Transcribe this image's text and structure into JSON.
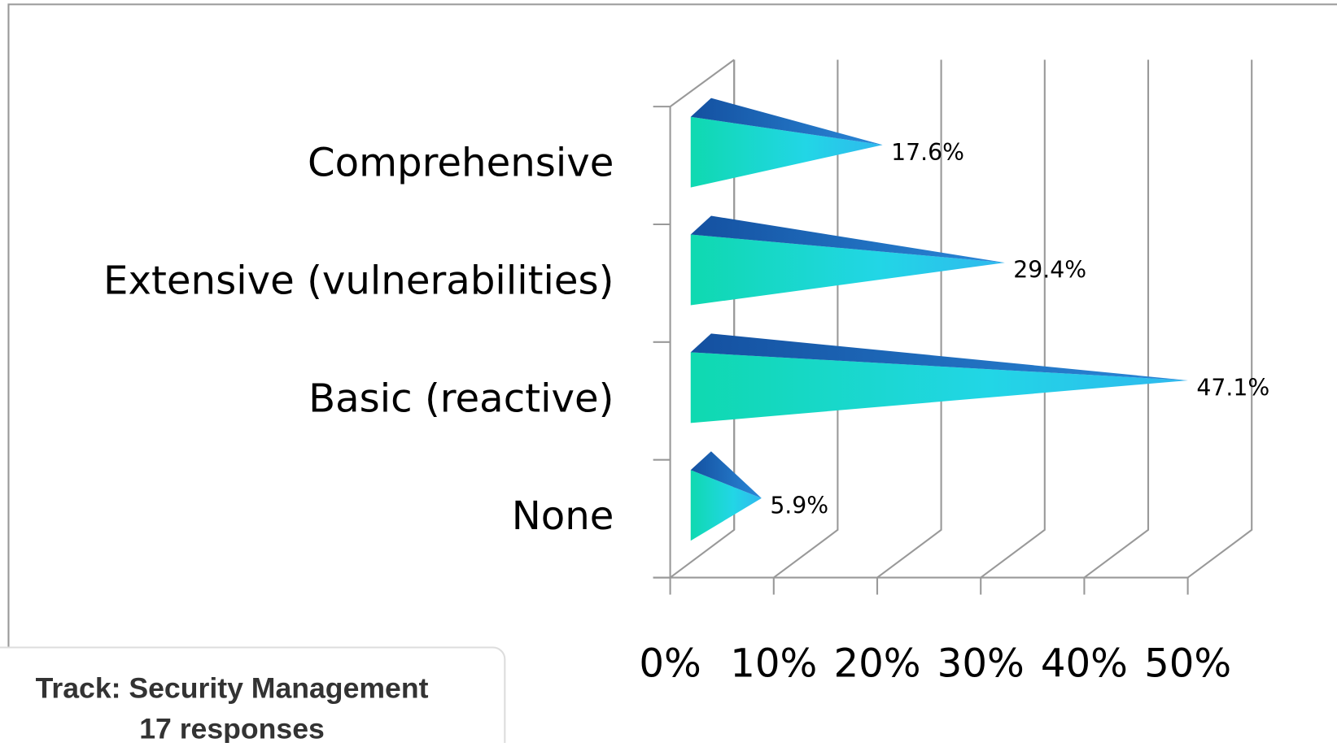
{
  "chart_data": {
    "type": "bar",
    "categories": [
      "Comprehensive",
      "Extensive (vulnerabilities)",
      "Basic (reactive)",
      "None"
    ],
    "values": [
      17.6,
      29.4,
      47.1,
      5.9
    ],
    "value_labels": [
      "17.6%",
      "29.4%",
      "47.1%",
      "5.9%"
    ],
    "xlim": [
      0,
      50
    ],
    "xticks": [
      {
        "value": 0,
        "label": "0%"
      },
      {
        "value": 10,
        "label": "10%"
      },
      {
        "value": 20,
        "label": "20%"
      },
      {
        "value": 30,
        "label": "30%"
      },
      {
        "value": 40,
        "label": "40%"
      },
      {
        "value": 50,
        "label": "50%"
      }
    ],
    "grid": true,
    "annotations": [
      "Track: Security Management",
      "17 responses"
    ]
  }
}
